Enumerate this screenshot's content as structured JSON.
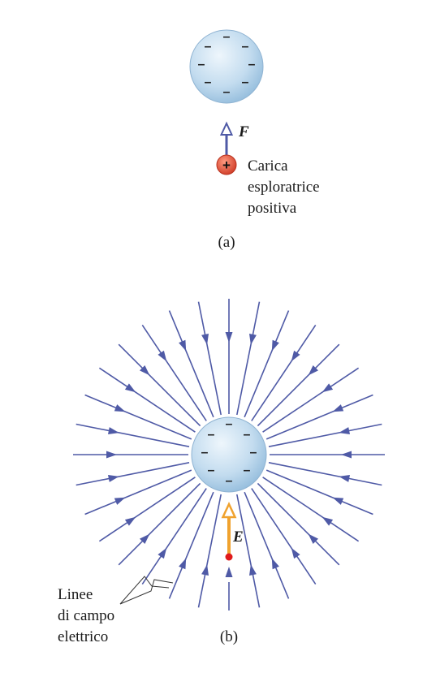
{
  "panel_a": {
    "force_symbol": "F",
    "charge_sign": "+",
    "sphere_charge_sign": "–",
    "probe_label": [
      "Carica",
      "esploratrice",
      "positiva"
    ],
    "caption": "(a)"
  },
  "panel_b": {
    "field_symbol": "E",
    "sphere_charge_sign": "–",
    "field_lines_label": [
      "Linee",
      "di campo",
      "elettrico"
    ],
    "field_line_count": 32,
    "caption": "(b)"
  },
  "colors": {
    "field_line": "#4f5aa6",
    "sphere_light": "#e6f1fa",
    "sphere_dark": "#9ec3e0",
    "field_vector": "#f0a22e",
    "test_charge": "#e0533a",
    "test_point": "#e01a1a"
  }
}
